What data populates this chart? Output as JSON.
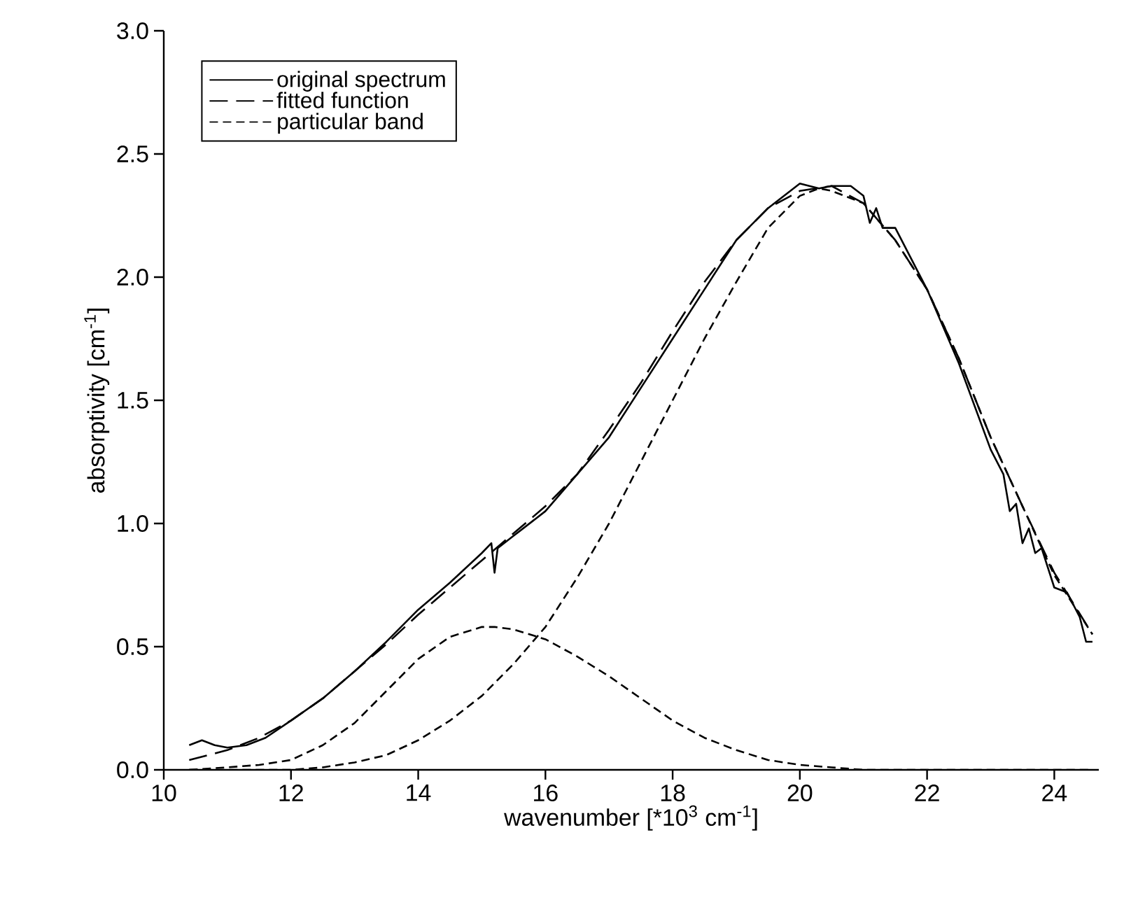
{
  "chart_data": {
    "type": "line",
    "xlabel": "wavenumber  [*10$^{3}$ cm$^{-1}$]",
    "ylabel": "absorptivity  [cm$^{-1}$]",
    "xlim": [
      10,
      24.7
    ],
    "ylim": [
      0,
      3.0
    ],
    "xticks": [
      10,
      12,
      14,
      16,
      18,
      20,
      22,
      24
    ],
    "yticks": [
      {
        "value": 0,
        "label": "0.0"
      },
      {
        "value": 0.5,
        "label": "0.5"
      },
      {
        "value": 1.0,
        "label": "1.0"
      },
      {
        "value": 1.5,
        "label": "1.5"
      },
      {
        "value": 2.0,
        "label": "2.0"
      },
      {
        "value": 2.5,
        "label": "2.5"
      },
      {
        "value": 3.0,
        "label": "3.0"
      }
    ],
    "legend": "top left",
    "grid": false,
    "marker": "none",
    "series": [
      {
        "name": "original spectrum",
        "color": "#000000",
        "line_style": "solid",
        "x": [
          10.4,
          10.6,
          10.8,
          11.0,
          11.3,
          11.6,
          12.0,
          12.5,
          13.0,
          13.5,
          14.0,
          14.5,
          15.0,
          15.15,
          15.2,
          15.25,
          15.5,
          16.0,
          16.5,
          17.0,
          17.5,
          18.0,
          18.5,
          19.0,
          19.5,
          20.0,
          20.3,
          20.5,
          20.8,
          21.0,
          21.1,
          21.2,
          21.3,
          21.5,
          22.0,
          22.5,
          23.0,
          23.2,
          23.3,
          23.4,
          23.5,
          23.6,
          23.7,
          23.8,
          24.0,
          24.2,
          24.4,
          24.5,
          24.6
        ],
        "values": [
          0.1,
          0.12,
          0.1,
          0.09,
          0.1,
          0.13,
          0.2,
          0.29,
          0.4,
          0.52,
          0.65,
          0.76,
          0.88,
          0.92,
          0.8,
          0.9,
          0.95,
          1.05,
          1.2,
          1.35,
          1.55,
          1.75,
          1.95,
          2.15,
          2.28,
          2.38,
          2.36,
          2.37,
          2.37,
          2.33,
          2.22,
          2.28,
          2.2,
          2.2,
          1.95,
          1.65,
          1.3,
          1.2,
          1.05,
          1.08,
          0.92,
          0.98,
          0.88,
          0.9,
          0.74,
          0.72,
          0.62,
          0.52,
          0.52
        ]
      },
      {
        "name": "fitted function",
        "color": "#000000",
        "line_style": "dashed",
        "x": [
          10.4,
          11.0,
          11.5,
          12.0,
          12.5,
          13.0,
          13.5,
          14.0,
          14.5,
          15.0,
          15.5,
          16.0,
          16.5,
          17.0,
          17.5,
          18.0,
          18.5,
          19.0,
          19.5,
          20.0,
          20.5,
          21.0,
          21.5,
          22.0,
          22.5,
          23.0,
          23.5,
          24.0,
          24.6
        ],
        "values": [
          0.04,
          0.08,
          0.13,
          0.2,
          0.29,
          0.4,
          0.51,
          0.63,
          0.74,
          0.85,
          0.96,
          1.07,
          1.2,
          1.38,
          1.57,
          1.78,
          1.98,
          2.15,
          2.28,
          2.35,
          2.37,
          2.3,
          2.15,
          1.95,
          1.67,
          1.35,
          1.07,
          0.8,
          0.55
        ]
      },
      {
        "name": "particular band",
        "color": "#000000",
        "line_style": "dashed",
        "x": [
          10.4,
          11.0,
          11.5,
          12.0,
          12.5,
          13.0,
          13.5,
          14.0,
          14.5,
          15.0,
          15.2,
          15.5,
          16.0,
          16.5,
          17.0,
          17.5,
          18.0,
          18.5,
          19.0,
          19.5,
          20.0,
          20.5,
          21.0,
          22.0,
          23.0,
          24.6
        ],
        "values": [
          0.0,
          0.01,
          0.02,
          0.04,
          0.1,
          0.19,
          0.32,
          0.45,
          0.54,
          0.58,
          0.58,
          0.57,
          0.53,
          0.46,
          0.38,
          0.29,
          0.2,
          0.13,
          0.08,
          0.04,
          0.02,
          0.01,
          0.0,
          0.0,
          0.0,
          0.0
        ]
      },
      {
        "color": "#000000",
        "line_style": "dashed",
        "x": [
          10.4,
          11.0,
          12.0,
          12.5,
          13.0,
          13.5,
          14.0,
          14.5,
          15.0,
          15.5,
          16.0,
          16.5,
          17.0,
          17.5,
          18.0,
          18.5,
          19.0,
          19.5,
          20.0,
          20.3,
          20.5,
          21.0,
          21.5,
          22.0,
          22.5,
          23.0,
          23.5,
          24.0,
          24.6
        ],
        "values": [
          0.0,
          0.0,
          0.0,
          0.01,
          0.03,
          0.06,
          0.12,
          0.2,
          0.3,
          0.43,
          0.58,
          0.78,
          1.0,
          1.25,
          1.5,
          1.75,
          1.98,
          2.2,
          2.33,
          2.36,
          2.35,
          2.3,
          2.15,
          1.95,
          1.67,
          1.35,
          1.07,
          0.79,
          0.55
        ]
      }
    ]
  }
}
